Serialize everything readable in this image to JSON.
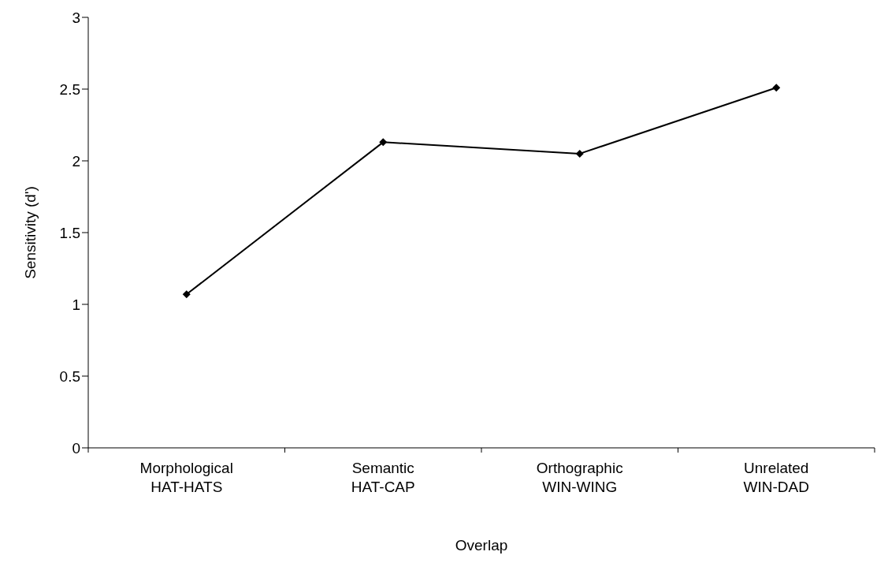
{
  "chart_data": {
    "type": "line",
    "xlabel": "Overlap",
    "ylabel": "Sensitivity (d')",
    "categories": [
      "Morphological\nHAT-HATS",
      "Semantic\nHAT-CAP",
      "Orthographic\nWIN-WING",
      "Unrelated\nWIN-DAD"
    ],
    "series": [
      {
        "color": "#000000",
        "values": [
          1.07,
          2.13,
          2.05,
          2.51
        ]
      }
    ],
    "ylim": [
      0,
      3
    ],
    "yticks": [
      0,
      0.5,
      1,
      1.5,
      2,
      2.5,
      3
    ],
    "grid": false,
    "legend": false,
    "marker": "diamond",
    "line_style": "solid"
  }
}
